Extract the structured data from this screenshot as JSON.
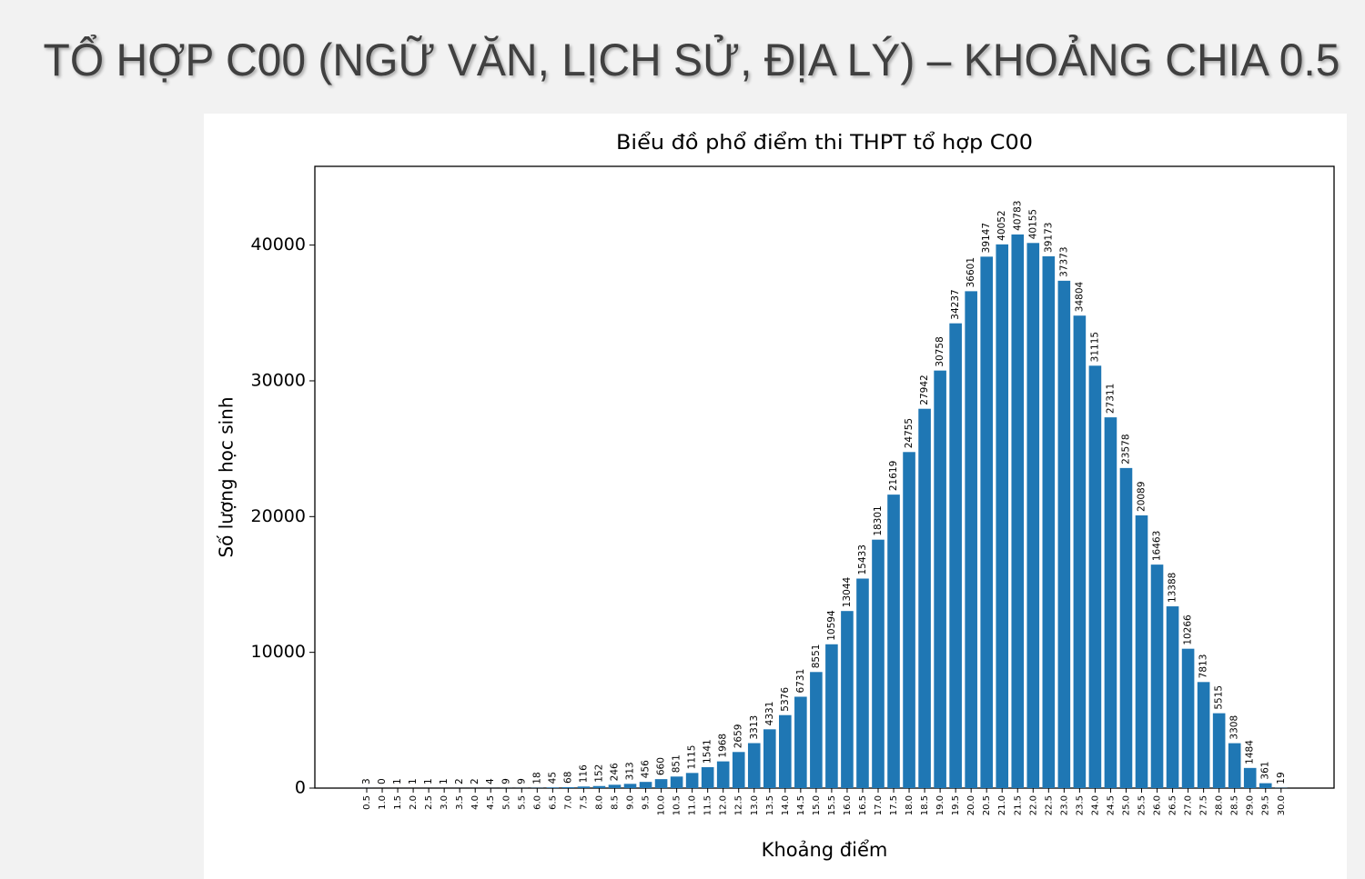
{
  "slide_title": "TỔ HỢP C00 (NGỮ VĂN, LỊCH SỬ, ĐỊA LÝ) – KHOẢNG CHIA 0.5",
  "chart_data": {
    "type": "bar",
    "title": "Biểu đồ phổ điểm thi THPT tổ hợp C00",
    "x_label": "Khoảng điểm",
    "y_label": "Số lượng học sinh",
    "color": "#1f77b4",
    "categories": [
      "0.5",
      "1.0",
      "1.5",
      "2.0",
      "2.5",
      "3.0",
      "3.5",
      "4.0",
      "4.5",
      "5.0",
      "5.5",
      "6.0",
      "6.5",
      "7.0",
      "7.5",
      "8.0",
      "8.5",
      "9.0",
      "9.5",
      "10.0",
      "10.5",
      "11.0",
      "11.5",
      "12.0",
      "12.5",
      "13.0",
      "13.5",
      "14.0",
      "14.5",
      "15.0",
      "15.5",
      "16.0",
      "16.5",
      "17.0",
      "17.5",
      "18.0",
      "18.5",
      "19.0",
      "19.5",
      "20.0",
      "20.5",
      "21.0",
      "21.5",
      "22.0",
      "22.5",
      "23.0",
      "23.5",
      "24.0",
      "24.5",
      "25.0",
      "25.5",
      "26.0",
      "26.5",
      "27.0",
      "27.5",
      "28.0",
      "28.5",
      "29.0",
      "29.5",
      "30.0"
    ],
    "values": [
      3,
      0,
      1,
      1,
      1,
      1,
      2,
      2,
      4,
      9,
      9,
      18,
      45,
      68,
      116,
      152,
      246,
      313,
      456,
      660,
      851,
      1115,
      1541,
      1968,
      2659,
      3313,
      4331,
      5376,
      6731,
      8551,
      10594,
      13044,
      15433,
      18301,
      21619,
      24755,
      27942,
      30758,
      34237,
      36601,
      39147,
      40052,
      40783,
      40155,
      39173,
      37373,
      34804,
      31115,
      27311,
      23578,
      20089,
      16463,
      13388,
      10266,
      7813,
      5515,
      3308,
      1484,
      361,
      19
    ],
    "ylim": [
      0,
      45800
    ],
    "yticks": [
      0,
      10000,
      20000,
      30000,
      40000
    ]
  }
}
